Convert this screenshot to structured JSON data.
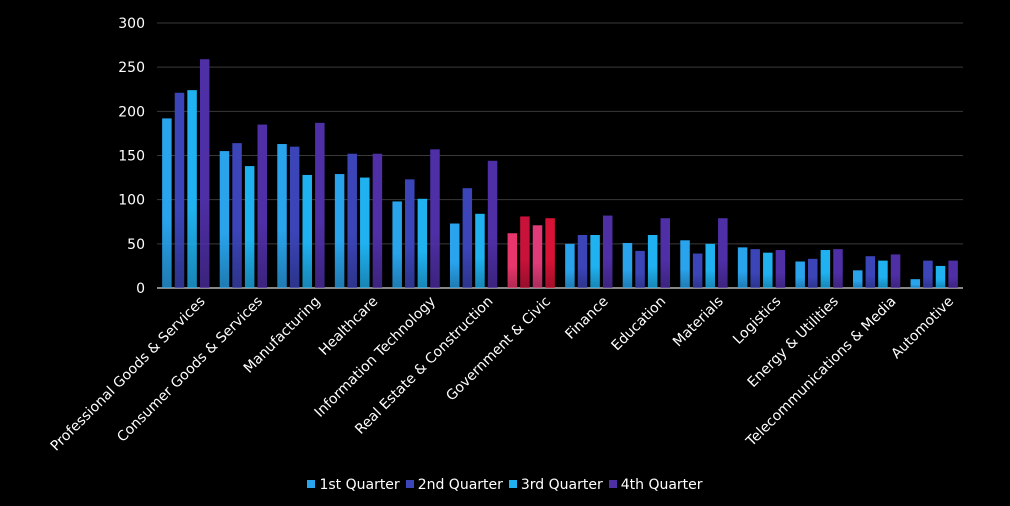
{
  "chart_data": {
    "type": "bar",
    "categories": [
      "Professional Goods & Services",
      "Consumer Goods & Services",
      "Manufacturing",
      "Healthcare",
      "Information Technology",
      "Real Estate & Construction",
      "Government & Civic",
      "Finance",
      "Education",
      "Materials",
      "Logistics",
      "Energy & Utilities",
      "Telecommunications & Media",
      "Automotive"
    ],
    "series": [
      {
        "name": "1st Quarter",
        "values": [
          192,
          155,
          163,
          129,
          98,
          73,
          62,
          50,
          51,
          54,
          46,
          30,
          20,
          10
        ],
        "color": "#29a3ec"
      },
      {
        "name": "2nd Quarter",
        "values": [
          221,
          164,
          160,
          152,
          123,
          113,
          81,
          60,
          42,
          39,
          44,
          33,
          36,
          31
        ],
        "color": "#3b45b8"
      },
      {
        "name": "3rd Quarter",
        "values": [
          224,
          138,
          128,
          125,
          101,
          84,
          71,
          60,
          60,
          50,
          40,
          43,
          31,
          25
        ],
        "color": "#1fb1f0"
      },
      {
        "name": "4th Quarter",
        "values": [
          259,
          185,
          187,
          152,
          157,
          144,
          79,
          82,
          79,
          79,
          43,
          44,
          38,
          31
        ],
        "color": "#4f2fa6"
      }
    ],
    "highlight_category": "Government & Civic",
    "highlight_colors": [
      "#e8366c",
      "#c8123a",
      "#e13a78",
      "#d61236"
    ],
    "yticks": [
      0,
      50,
      100,
      150,
      200,
      250,
      300
    ],
    "ylim": [
      0,
      300
    ],
    "grid": true,
    "legend_position": "bottom"
  }
}
